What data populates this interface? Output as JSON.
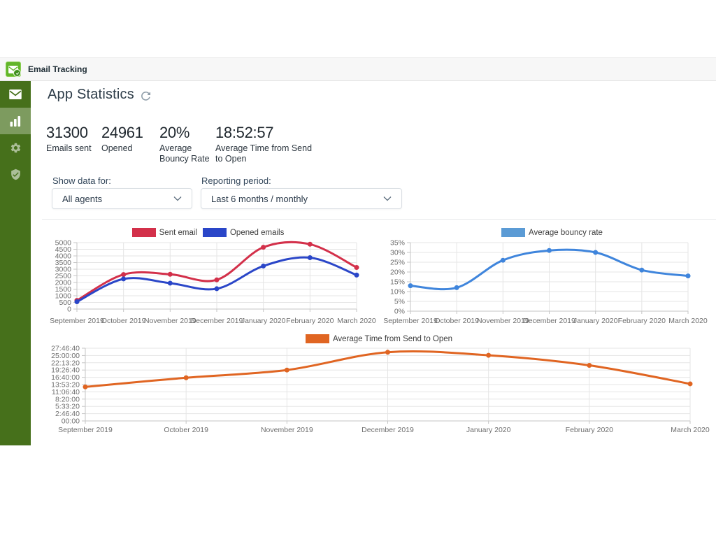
{
  "header": {
    "app_title": "Email Tracking"
  },
  "sidebar": {
    "items": [
      {
        "icon": "mail",
        "active": false
      },
      {
        "icon": "bar-chart",
        "active": true
      },
      {
        "icon": "gear",
        "active": false
      },
      {
        "icon": "shield-check",
        "active": false
      }
    ],
    "bg_color": "#46701b",
    "logo_color": "#62b52a"
  },
  "page": {
    "title": "App Statistics",
    "stats": [
      {
        "value": "31300",
        "label": "Emails sent"
      },
      {
        "value": "24961",
        "label": "Opened"
      },
      {
        "value": "20%",
        "label": "Average Bouncy Rate"
      },
      {
        "value": "18:52:57",
        "label": "Average Time from Send to Open"
      }
    ],
    "filters": [
      {
        "label": "Show data for:",
        "value": "All agents"
      },
      {
        "label": "Reporting period:",
        "value": "Last 6 months / monthly"
      }
    ]
  },
  "chart_data": [
    {
      "type": "line",
      "x": [
        "September 2019",
        "October 2019",
        "November 2019",
        "December 2019",
        "January 2020",
        "February 2020",
        "March 2020"
      ],
      "series": [
        {
          "name": "Sent email",
          "color": "#d3304a",
          "values": [
            650,
            2600,
            2620,
            2200,
            4650,
            4880,
            3130
          ]
        },
        {
          "name": "Opened emails",
          "color": "#2a46c8",
          "values": [
            550,
            2270,
            1950,
            1530,
            3240,
            3870,
            2560
          ]
        }
      ],
      "ylim": [
        0,
        5000
      ],
      "ytick_step": 500,
      "ytick_suffix": "",
      "grid": true,
      "legend_position": "top"
    },
    {
      "type": "line",
      "x": [
        "September 2019",
        "October 2019",
        "November 2019",
        "December 2019",
        "January 2020",
        "February 2020",
        "March 2020"
      ],
      "series": [
        {
          "name": "Average bouncy rate",
          "color": "#3f85dc",
          "swatch": "#5b9bd5",
          "values": [
            13,
            12,
            26,
            31,
            30,
            21,
            18
          ]
        }
      ],
      "ylim": [
        0,
        35
      ],
      "ytick_step": 5,
      "ytick_suffix": "%",
      "grid": true,
      "legend_position": "top"
    },
    {
      "type": "line",
      "x": [
        "September 2019",
        "October 2019",
        "November 2019",
        "December 2019",
        "January 2020",
        "February 2020",
        "March 2020"
      ],
      "series": [
        {
          "name": "Average Time from Send to Open",
          "color": "#e06522",
          "values": [
            46800,
            59400,
            70000,
            94500,
            90300,
            76400,
            51000
          ]
        }
      ],
      "ylim": [
        0,
        100000
      ],
      "ytick_step": 10000,
      "ytick_labels": [
        "00:00",
        "2:46:40",
        "5:33:20",
        "8:20:00",
        "11:06:40",
        "13:53:20",
        "16:40:00",
        "19:26:40",
        "22:13:20",
        "25:00:00",
        "27:46:40"
      ],
      "y_unit": "seconds (hh:mm:ss)",
      "grid": true,
      "legend_position": "top"
    }
  ]
}
